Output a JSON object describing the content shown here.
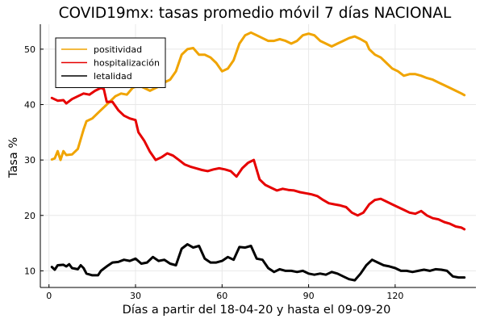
{
  "chart_data": {
    "type": "line",
    "title": "COVID19mx: tasas promedio móvil 7 días NACIONAL",
    "xlabel": "Días a partir del 18-04-20 y hasta el 09-09-20",
    "ylabel": "Tasa %",
    "xlim": [
      -3,
      148
    ],
    "ylim": [
      7,
      54.5
    ],
    "xticks": [
      0,
      30,
      60,
      90,
      120
    ],
    "yticks": [
      10,
      20,
      30,
      40,
      50
    ],
    "grid": true,
    "legend_position": "top-left",
    "series": [
      {
        "name": "positividad",
        "color": "#f0a400",
        "points": [
          [
            1,
            30.1
          ],
          [
            2,
            30.3
          ],
          [
            3,
            31.6
          ],
          [
            4,
            30
          ],
          [
            5,
            31.6
          ],
          [
            6,
            30.9
          ],
          [
            8,
            31
          ],
          [
            10,
            32
          ],
          [
            12,
            35.5
          ],
          [
            13,
            37
          ],
          [
            15,
            37.5
          ],
          [
            17,
            38.5
          ],
          [
            19,
            39.5
          ],
          [
            20,
            40
          ],
          [
            22,
            41
          ],
          [
            23,
            41.5
          ],
          [
            25,
            42
          ],
          [
            27,
            41.8
          ],
          [
            29,
            43
          ],
          [
            31,
            43.5
          ],
          [
            33,
            43
          ],
          [
            35,
            42.5
          ],
          [
            37,
            43
          ],
          [
            39,
            43.5
          ],
          [
            40,
            44
          ],
          [
            42,
            44.5
          ],
          [
            44,
            46
          ],
          [
            46,
            49
          ],
          [
            48,
            50
          ],
          [
            50,
            50.2
          ],
          [
            52,
            49
          ],
          [
            54,
            49
          ],
          [
            56,
            48.5
          ],
          [
            58,
            47.5
          ],
          [
            60,
            46
          ],
          [
            62,
            46.5
          ],
          [
            64,
            48
          ],
          [
            66,
            51
          ],
          [
            68,
            52.5
          ],
          [
            70,
            53
          ],
          [
            72,
            52.5
          ],
          [
            74,
            52
          ],
          [
            76,
            51.5
          ],
          [
            78,
            51.5
          ],
          [
            80,
            51.8
          ],
          [
            82,
            51.5
          ],
          [
            84,
            51
          ],
          [
            86,
            51.5
          ],
          [
            88,
            52.5
          ],
          [
            90,
            52.8
          ],
          [
            92,
            52.5
          ],
          [
            94,
            51.5
          ],
          [
            96,
            51
          ],
          [
            98,
            50.5
          ],
          [
            100,
            51
          ],
          [
            102,
            51.5
          ],
          [
            104,
            52
          ],
          [
            106,
            52.3
          ],
          [
            108,
            51.8
          ],
          [
            110,
            51.2
          ],
          [
            111,
            50
          ],
          [
            113,
            49
          ],
          [
            115,
            48.5
          ],
          [
            117,
            47.5
          ],
          [
            119,
            46.5
          ],
          [
            121,
            46
          ],
          [
            123,
            45.2
          ],
          [
            125,
            45.5
          ],
          [
            127,
            45.5
          ],
          [
            129,
            45.2
          ],
          [
            131,
            44.8
          ],
          [
            133,
            44.5
          ],
          [
            135,
            44
          ],
          [
            137,
            43.5
          ],
          [
            139,
            43
          ],
          [
            141,
            42.5
          ],
          [
            143,
            42
          ],
          [
            144,
            41.7
          ]
        ]
      },
      {
        "name": "hospitalización",
        "color": "#e60000",
        "points": [
          [
            1,
            41.2
          ],
          [
            3,
            40.7
          ],
          [
            5,
            40.8
          ],
          [
            6,
            40.2
          ],
          [
            8,
            41
          ],
          [
            10,
            41.5
          ],
          [
            12,
            42
          ],
          [
            14,
            41.8
          ],
          [
            16,
            42.5
          ],
          [
            18,
            43
          ],
          [
            19,
            42.8
          ],
          [
            20,
            40.5
          ],
          [
            22,
            40.5
          ],
          [
            24,
            39
          ],
          [
            26,
            38
          ],
          [
            28,
            37.5
          ],
          [
            30,
            37.2
          ],
          [
            31,
            35
          ],
          [
            33,
            33.5
          ],
          [
            35,
            31.5
          ],
          [
            37,
            30
          ],
          [
            39,
            30.5
          ],
          [
            41,
            31.2
          ],
          [
            43,
            30.8
          ],
          [
            45,
            30
          ],
          [
            47,
            29.2
          ],
          [
            49,
            28.8
          ],
          [
            51,
            28.5
          ],
          [
            53,
            28.2
          ],
          [
            55,
            28
          ],
          [
            57,
            28.3
          ],
          [
            59,
            28.5
          ],
          [
            61,
            28.3
          ],
          [
            63,
            28
          ],
          [
            64,
            27.5
          ],
          [
            65,
            27
          ],
          [
            67,
            28.5
          ],
          [
            69,
            29.5
          ],
          [
            71,
            30
          ],
          [
            73,
            26.5
          ],
          [
            75,
            25.5
          ],
          [
            77,
            25
          ],
          [
            79,
            24.5
          ],
          [
            81,
            24.8
          ],
          [
            83,
            24.6
          ],
          [
            85,
            24.5
          ],
          [
            87,
            24.2
          ],
          [
            89,
            24
          ],
          [
            91,
            23.8
          ],
          [
            93,
            23.5
          ],
          [
            95,
            22.8
          ],
          [
            97,
            22.2
          ],
          [
            99,
            22
          ],
          [
            101,
            21.8
          ],
          [
            103,
            21.5
          ],
          [
            105,
            20.5
          ],
          [
            107,
            20
          ],
          [
            109,
            20.5
          ],
          [
            111,
            22
          ],
          [
            113,
            22.8
          ],
          [
            115,
            23
          ],
          [
            117,
            22.5
          ],
          [
            119,
            22
          ],
          [
            121,
            21.5
          ],
          [
            123,
            21
          ],
          [
            125,
            20.5
          ],
          [
            127,
            20.3
          ],
          [
            129,
            20.8
          ],
          [
            131,
            20
          ],
          [
            133,
            19.5
          ],
          [
            135,
            19.3
          ],
          [
            137,
            18.8
          ],
          [
            139,
            18.5
          ],
          [
            141,
            18
          ],
          [
            143,
            17.8
          ],
          [
            144,
            17.5
          ]
        ]
      },
      {
        "name": "letalidad",
        "color": "#000000",
        "points": [
          [
            1,
            10.7
          ],
          [
            2,
            10.2
          ],
          [
            3,
            11
          ],
          [
            5,
            11.1
          ],
          [
            6,
            10.8
          ],
          [
            7,
            11.2
          ],
          [
            8,
            10.5
          ],
          [
            10,
            10.3
          ],
          [
            11,
            11
          ],
          [
            12,
            10.5
          ],
          [
            13,
            9.5
          ],
          [
            15,
            9.2
          ],
          [
            17,
            9.2
          ],
          [
            18,
            10
          ],
          [
            20,
            10.8
          ],
          [
            22,
            11.5
          ],
          [
            24,
            11.6
          ],
          [
            26,
            12
          ],
          [
            28,
            11.8
          ],
          [
            30,
            12.2
          ],
          [
            32,
            11.3
          ],
          [
            34,
            11.5
          ],
          [
            36,
            12.5
          ],
          [
            38,
            11.8
          ],
          [
            40,
            12
          ],
          [
            42,
            11.3
          ],
          [
            44,
            11
          ],
          [
            46,
            14
          ],
          [
            48,
            14.8
          ],
          [
            50,
            14.2
          ],
          [
            52,
            14.5
          ],
          [
            54,
            12.2
          ],
          [
            56,
            11.5
          ],
          [
            58,
            11.5
          ],
          [
            60,
            11.8
          ],
          [
            62,
            12.5
          ],
          [
            64,
            12
          ],
          [
            66,
            14.3
          ],
          [
            68,
            14.2
          ],
          [
            70,
            14.5
          ],
          [
            72,
            12.2
          ],
          [
            74,
            12
          ],
          [
            76,
            10.5
          ],
          [
            78,
            9.8
          ],
          [
            80,
            10.3
          ],
          [
            82,
            10
          ],
          [
            84,
            10
          ],
          [
            86,
            9.8
          ],
          [
            88,
            10
          ],
          [
            90,
            9.5
          ],
          [
            92,
            9.3
          ],
          [
            94,
            9.5
          ],
          [
            96,
            9.3
          ],
          [
            98,
            9.8
          ],
          [
            100,
            9.5
          ],
          [
            102,
            9
          ],
          [
            104,
            8.5
          ],
          [
            106,
            8.3
          ],
          [
            108,
            9.5
          ],
          [
            110,
            11
          ],
          [
            112,
            12
          ],
          [
            114,
            11.5
          ],
          [
            116,
            11
          ],
          [
            118,
            10.8
          ],
          [
            120,
            10.5
          ],
          [
            122,
            10
          ],
          [
            124,
            10
          ],
          [
            126,
            9.8
          ],
          [
            128,
            10
          ],
          [
            130,
            10.2
          ],
          [
            132,
            10
          ],
          [
            134,
            10.3
          ],
          [
            136,
            10.2
          ],
          [
            138,
            10
          ],
          [
            140,
            9
          ],
          [
            142,
            8.8
          ],
          [
            144,
            8.8
          ]
        ]
      }
    ]
  }
}
